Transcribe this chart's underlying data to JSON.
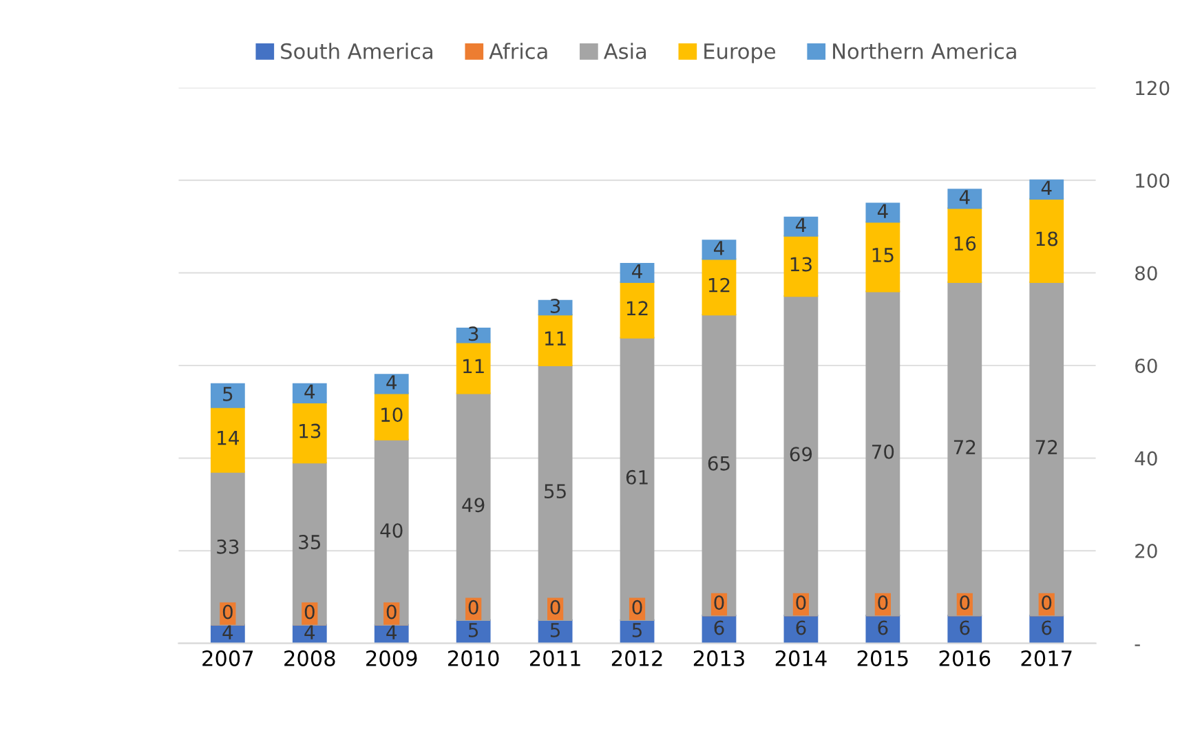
{
  "chart_data": {
    "type": "bar",
    "stacked": true,
    "categories": [
      "2007",
      "2008",
      "2009",
      "2010",
      "2011",
      "2012",
      "2013",
      "2014",
      "2015",
      "2016",
      "2017"
    ],
    "series": [
      {
        "name": "South America",
        "color": "#4472c4",
        "values": [
          4,
          4,
          4,
          5,
          5,
          5,
          6,
          6,
          6,
          6,
          6
        ]
      },
      {
        "name": "Africa",
        "color": "#ed7d31",
        "values": [
          0,
          0,
          0,
          0,
          0,
          0,
          0,
          0,
          0,
          0,
          0
        ]
      },
      {
        "name": "Asia",
        "color": "#a5a5a5",
        "values": [
          33,
          35,
          40,
          49,
          55,
          61,
          65,
          69,
          70,
          72,
          72
        ]
      },
      {
        "name": "Europe",
        "color": "#ffc000",
        "values": [
          14,
          13,
          10,
          11,
          11,
          12,
          12,
          13,
          15,
          16,
          18
        ]
      },
      {
        "name": "Northern America",
        "color": "#5b9bd5",
        "values": [
          5,
          4,
          4,
          3,
          3,
          4,
          4,
          4,
          4,
          4,
          4
        ]
      }
    ],
    "ylim": [
      0,
      120
    ],
    "yticks": [
      {
        "value": 0,
        "label": "-"
      },
      20,
      40,
      60,
      80,
      100,
      120
    ],
    "grid": "y",
    "legend": "top",
    "data_labels": true
  }
}
